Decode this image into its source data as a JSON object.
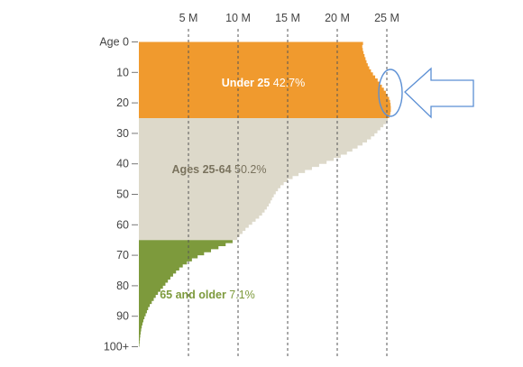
{
  "chart_data": {
    "type": "area",
    "orientation": "horizontal",
    "title": "",
    "x_axis": {
      "position": "top",
      "ticks": [
        "5 M",
        "10 M",
        "15 M",
        "20 M",
        "25 M"
      ],
      "tick_values": [
        5,
        10,
        15,
        20,
        25
      ],
      "range": [
        0,
        25
      ],
      "unit": "millions"
    },
    "y_axis": {
      "ticks": [
        "Age 0",
        "10",
        "20",
        "30",
        "40",
        "50",
        "60",
        "70",
        "80",
        "90",
        "100+"
      ],
      "tick_values": [
        0,
        10,
        20,
        30,
        40,
        50,
        60,
        70,
        80,
        90,
        100
      ],
      "range": [
        0,
        100
      ]
    },
    "grid": true,
    "series": [
      {
        "name": "Under 25",
        "share": "42.7%",
        "age_range": [
          0,
          25
        ],
        "color": "#F09A2E",
        "profile": [
          [
            0,
            22.7
          ],
          [
            1,
            22.5
          ],
          [
            3,
            22.6
          ],
          [
            5,
            22.8
          ],
          [
            7,
            23.0
          ],
          [
            9,
            23.3
          ],
          [
            11,
            23.7
          ],
          [
            13,
            24.2
          ],
          [
            15,
            24.6
          ],
          [
            17,
            25.0
          ],
          [
            19,
            25.3
          ],
          [
            21,
            25.4
          ],
          [
            23,
            25.4
          ],
          [
            25,
            25.2
          ]
        ]
      },
      {
        "name": "Ages 25-64",
        "share": "50.2%",
        "age_range": [
          25,
          65
        ],
        "color": "#DDD9CA",
        "profile": [
          [
            25,
            25.2
          ],
          [
            27,
            24.8
          ],
          [
            29,
            24.2
          ],
          [
            31,
            23.6
          ],
          [
            33,
            22.8
          ],
          [
            35,
            21.8
          ],
          [
            37,
            20.7
          ],
          [
            39,
            19.3
          ],
          [
            41,
            17.8
          ],
          [
            43,
            16.4
          ],
          [
            45,
            15.2
          ],
          [
            47,
            14.4
          ],
          [
            49,
            13.9
          ],
          [
            51,
            13.5
          ],
          [
            53,
            13.2
          ],
          [
            55,
            12.8
          ],
          [
            57,
            12.3
          ],
          [
            59,
            11.6
          ],
          [
            61,
            10.9
          ],
          [
            63,
            10.3
          ],
          [
            65,
            9.8
          ]
        ]
      },
      {
        "name": "65 and older",
        "share": "7.1%",
        "age_range": [
          65,
          100
        ],
        "color": "#7D9A3C",
        "profile": [
          [
            65,
            9.8
          ],
          [
            67,
            8.4
          ],
          [
            69,
            6.9
          ],
          [
            71,
            5.6
          ],
          [
            73,
            4.6
          ],
          [
            75,
            3.9
          ],
          [
            77,
            3.3
          ],
          [
            79,
            2.8
          ],
          [
            81,
            2.3
          ],
          [
            83,
            1.8
          ],
          [
            85,
            1.4
          ],
          [
            87,
            1.0
          ],
          [
            89,
            0.75
          ],
          [
            91,
            0.5
          ],
          [
            93,
            0.32
          ],
          [
            95,
            0.2
          ],
          [
            97,
            0.12
          ],
          [
            99,
            0.06
          ],
          [
            100,
            0.03
          ]
        ]
      }
    ],
    "annotations": [
      {
        "type": "ellipse",
        "near_age": 20,
        "note": "blue outline ring around peak"
      },
      {
        "type": "arrow",
        "direction": "left",
        "points_to_age": 20
      }
    ],
    "label_colors": {
      "Under 25": "#FFFFFF",
      "Ages 25-64": "#7A735E",
      "65 and older": "#7D9A3C"
    },
    "accent_color": "#5B8FD4"
  }
}
